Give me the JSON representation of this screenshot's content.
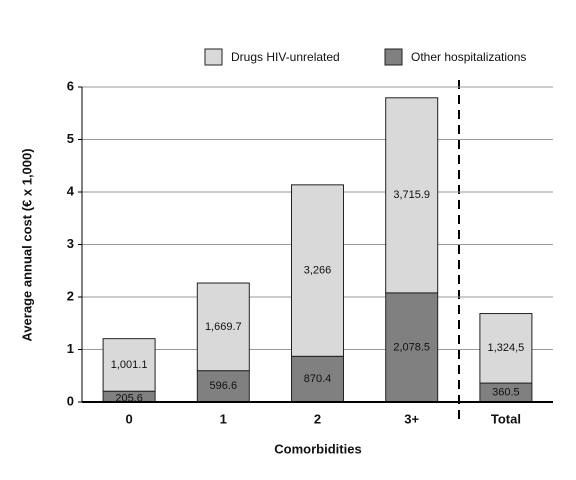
{
  "chart_data": {
    "type": "bar",
    "stacked": true,
    "y_label": "Average annual cost (€ x 1,000)",
    "x_label": "Comorbidities",
    "categories": [
      "0",
      "1",
      "2",
      "3+",
      "Total"
    ],
    "series": [
      {
        "name": "Drugs HIV-unrelated",
        "color": "#d9d9d9",
        "values": [
          1.0011,
          1.6697,
          3.266,
          3.7159,
          1.3245
        ],
        "value_labels": [
          "1,001.1",
          "1,669.7",
          "3,266",
          "3,715.9",
          "1,324,5"
        ]
      },
      {
        "name": "Other hospitalizations",
        "color": "#808080",
        "values": [
          0.2056,
          0.5966,
          0.8704,
          2.0785,
          0.3605
        ],
        "value_labels": [
          "205.6",
          "596.6",
          "870.4",
          "2,078.5",
          "360.5"
        ]
      }
    ],
    "stack_order": [
      1,
      0
    ],
    "ylim": [
      0,
      6
    ],
    "yticks": [
      0,
      1,
      2,
      3,
      4,
      5,
      6
    ],
    "grid": true,
    "legend": "top"
  }
}
